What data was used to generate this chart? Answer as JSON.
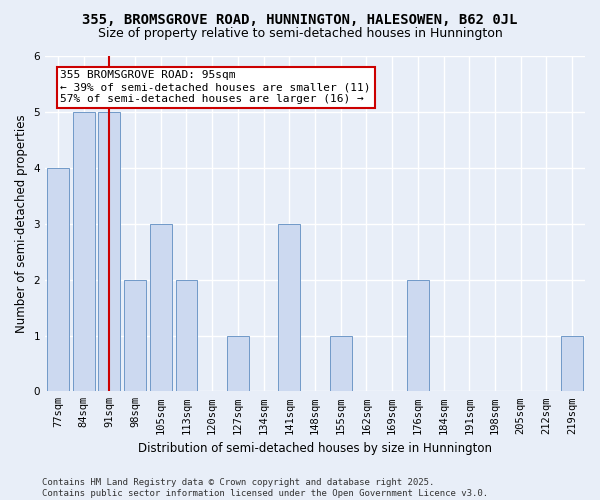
{
  "title": "355, BROMSGROVE ROAD, HUNNINGTON, HALESOWEN, B62 0JL",
  "subtitle": "Size of property relative to semi-detached houses in Hunnington",
  "xlabel": "Distribution of semi-detached houses by size in Hunnington",
  "ylabel": "Number of semi-detached properties",
  "categories": [
    "77sqm",
    "84sqm",
    "91sqm",
    "98sqm",
    "105sqm",
    "113sqm",
    "120sqm",
    "127sqm",
    "134sqm",
    "141sqm",
    "148sqm",
    "155sqm",
    "162sqm",
    "169sqm",
    "176sqm",
    "184sqm",
    "191sqm",
    "198sqm",
    "205sqm",
    "212sqm",
    "219sqm"
  ],
  "values": [
    4,
    5,
    5,
    2,
    3,
    2,
    0,
    1,
    0,
    3,
    0,
    1,
    0,
    0,
    2,
    0,
    0,
    0,
    0,
    0,
    1
  ],
  "bar_color": "#ccd9f0",
  "bar_edge_color": "#7099c8",
  "highlight_index": 2,
  "highlight_line_color": "#cc0000",
  "annotation_text": "355 BROMSGROVE ROAD: 95sqm\n← 39% of semi-detached houses are smaller (11)\n57% of semi-detached houses are larger (16) →",
  "annotation_box_color": "#ffffff",
  "annotation_box_edge_color": "#cc0000",
  "ylim": [
    0,
    6
  ],
  "yticks": [
    0,
    1,
    2,
    3,
    4,
    5,
    6
  ],
  "footer_text": "Contains HM Land Registry data © Crown copyright and database right 2025.\nContains public sector information licensed under the Open Government Licence v3.0.",
  "background_color": "#e8eef8",
  "plot_bg_color": "#e8eef8",
  "grid_color": "#ffffff",
  "title_fontsize": 10,
  "subtitle_fontsize": 9,
  "axis_label_fontsize": 8.5,
  "tick_fontsize": 7.5,
  "footer_fontsize": 6.5,
  "annotation_fontsize": 8
}
